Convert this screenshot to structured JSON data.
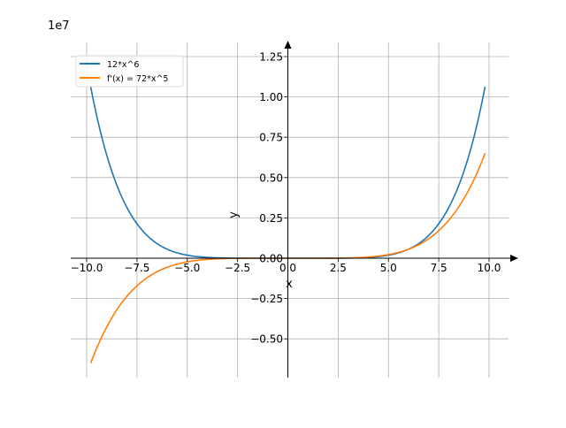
{
  "chart_data": {
    "type": "line",
    "title": "",
    "xlabel": "x",
    "ylabel": "y",
    "offset_text": "1e7",
    "xlim": [
      -10.8,
      11
    ],
    "ylim": [
      -0.74,
      1.34
    ],
    "y_scale": 10000000,
    "x_domain": [
      -9.8,
      9.8
    ],
    "grid": true,
    "legend_position": "top-left",
    "x_ticks": [
      -10,
      -7.5,
      -5,
      -2.5,
      0,
      2.5,
      5,
      7.5,
      10
    ],
    "x_tick_labels": [
      "−10.0",
      "−7.5",
      "−5.0",
      "−2.5",
      "0.0",
      "2.5",
      "5.0",
      "7.5",
      "10.0"
    ],
    "y_ticks": [
      -0.5,
      -0.25,
      0,
      0.25,
      0.5,
      0.75,
      1.0,
      1.25
    ],
    "y_tick_labels": [
      "−0.50",
      "−0.25",
      "0.00",
      "0.25",
      "0.50",
      "0.75",
      "1.00",
      "1.25"
    ],
    "series": [
      {
        "name": "12*x^6",
        "coef": 12,
        "power": 6,
        "color": "#1f77b4"
      },
      {
        "name": "f'(x) = 72*x^5",
        "coef": 72,
        "power": 5,
        "color": "#ff7f0e"
      }
    ]
  }
}
